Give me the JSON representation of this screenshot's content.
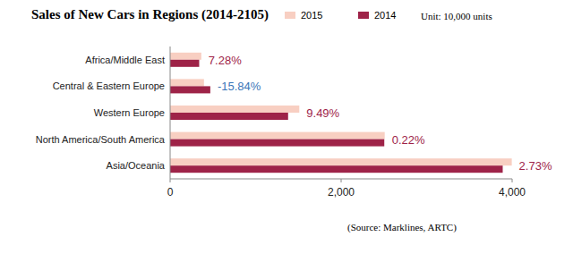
{
  "chart_data": {
    "type": "bar",
    "orientation": "horizontal",
    "title": "Sales of New Cars in Regions (2014-2105)",
    "unit": "Unit: 10,000 units",
    "source": "(Source: Marklines, ARTC)",
    "categories": [
      "Africa/Middle East",
      "Central & Eastern Europe",
      "Western Europe",
      "North America/South America",
      "Asia/Oceania"
    ],
    "series": [
      {
        "name": "2015",
        "color": "#f8cfc2",
        "values": [
          365,
          396,
          1511,
          2510,
          3996
        ]
      },
      {
        "name": "2014",
        "color": "#9e2348",
        "values": [
          340,
          470,
          1380,
          2505,
          3890
        ]
      }
    ],
    "annotations": [
      {
        "text": "7.28%",
        "color": "#9e2348"
      },
      {
        "text": "-15.84%",
        "color": "#3a76b8"
      },
      {
        "text": "9.49%",
        "color": "#9e2348"
      },
      {
        "text": "0.22%",
        "color": "#9e2348"
      },
      {
        "text": "2.73%",
        "color": "#9e2348"
      }
    ],
    "xlim": [
      0,
      4000
    ],
    "xticks": [
      0,
      {
        "value": 2000,
        "label": "2,000"
      },
      {
        "value": 4000,
        "label": "4,000"
      }
    ],
    "grid": false,
    "legend": "top",
    "data_labels": false
  }
}
